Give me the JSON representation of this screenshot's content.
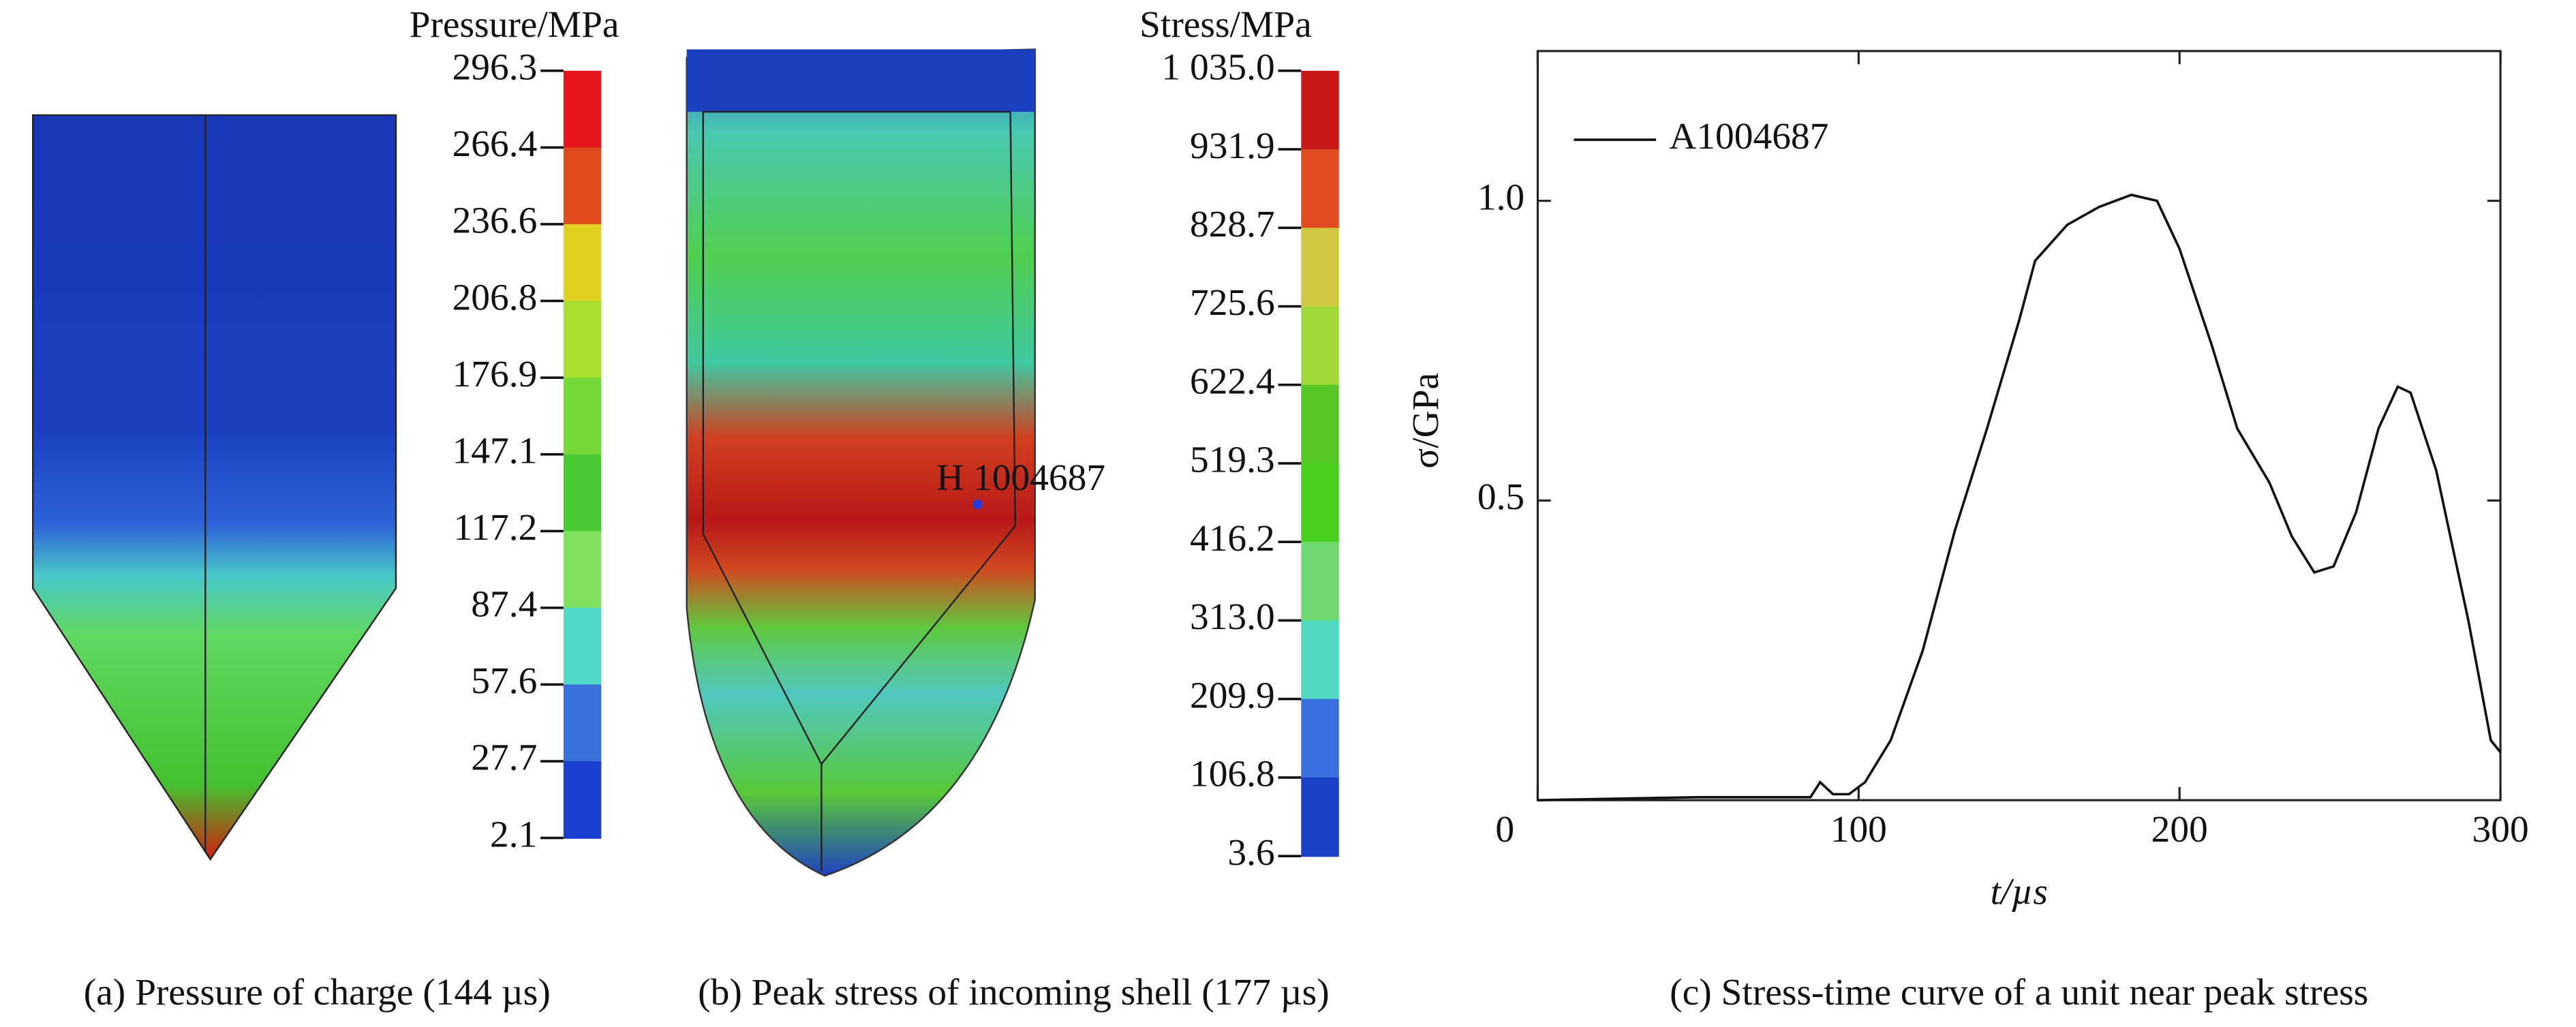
{
  "figure_a": {
    "colorbar_title": "Pressure/MPa",
    "colorbar_labels": [
      "296.3",
      "266.4",
      "236.6",
      "206.8",
      "176.9",
      "147.1",
      "117.2",
      "87.4",
      "57.6",
      "27.7",
      "2.1"
    ],
    "colorbar_colors": [
      "#e8141c",
      "#e04a1c",
      "#e0d020",
      "#a8e030",
      "#78d838",
      "#4cc830",
      "#80e060",
      "#50d8c8",
      "#3a70d8",
      "#1a3fd0"
    ],
    "caption": "(a) Pressure of charge (144 µs)"
  },
  "figure_b": {
    "colorbar_title": "Stress/MPa",
    "colorbar_labels": [
      "1 035.0",
      "931.9",
      "828.7",
      "725.6",
      "622.4",
      "519.3",
      "416.2",
      "313.0",
      "209.9",
      "106.8",
      "3.6"
    ],
    "colorbar_colors": [
      "#c81818",
      "#e04c20",
      "#d0c840",
      "#a0d838",
      "#58c828",
      "#48d020",
      "#70d870",
      "#50d8c0",
      "#3870e0",
      "#1a40c8"
    ],
    "annotation": "H 1004687",
    "caption": "(b) Peak stress of incoming shell (177 µs)"
  },
  "chart_data": {
    "type": "line",
    "xlabel": "t/µs",
    "ylabel": "σ/GPa",
    "caption": "(c) Stress-time curve of a unit near peak stress",
    "x": [
      0,
      50,
      85,
      88,
      92,
      97,
      102,
      110,
      120,
      130,
      140,
      150,
      155,
      165,
      175,
      185,
      193,
      200,
      210,
      218,
      228,
      235,
      242,
      248,
      255,
      262,
      268,
      272,
      280,
      290,
      297,
      300
    ],
    "series": [
      {
        "name": "A1004687",
        "color": "#111111",
        "values": [
          0,
          0.005,
          0.005,
          0.03,
          0.01,
          0.01,
          0.03,
          0.1,
          0.25,
          0.45,
          0.62,
          0.8,
          0.9,
          0.96,
          0.99,
          1.01,
          1.0,
          0.92,
          0.76,
          0.62,
          0.53,
          0.44,
          0.38,
          0.39,
          0.48,
          0.62,
          0.69,
          0.68,
          0.55,
          0.3,
          0.1,
          0.08
        ]
      }
    ],
    "xlim": [
      0,
      300
    ],
    "ylim": [
      0,
      1.25
    ],
    "xticks": [
      0,
      100,
      200,
      300
    ],
    "yticks": [
      {
        "value": 0.5,
        "label": "0.5"
      },
      {
        "value": 1,
        "label": "1.0"
      }
    ]
  }
}
